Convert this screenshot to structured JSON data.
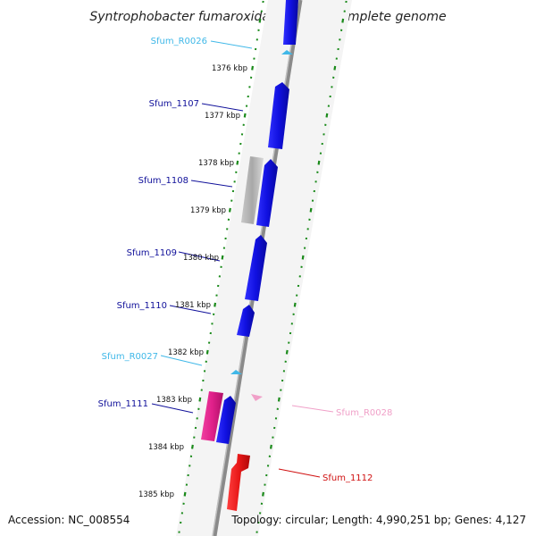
{
  "title": "Syntrophobacter fumaroxidans MPOB, complete genome",
  "accession": "Accession: NC_008554",
  "summary": "Topology: circular; Length: 4,990,251 bp; Genes: 4,127",
  "colors": {
    "cds": "#1010e0",
    "rna": "#40b8e8",
    "pseudo": "#b0b0b0",
    "magenta_gene": "#e0208a",
    "red_gene": "#e81818",
    "pink_rna": "#f0a0c8",
    "scale": "#1a8a1a",
    "backbone": "#888888"
  },
  "kbp_ticks": [
    {
      "label": "1376 kbp"
    },
    {
      "label": "1377 kbp"
    },
    {
      "label": "1378 kbp"
    },
    {
      "label": "1379 kbp"
    },
    {
      "label": "1380 kbp"
    },
    {
      "label": "1381 kbp"
    },
    {
      "label": "1382 kbp"
    },
    {
      "label": "1383 kbp"
    },
    {
      "label": "1384 kbp"
    },
    {
      "label": "1385 kbp"
    }
  ],
  "gene_labels": [
    {
      "name": "Sfum_R0026",
      "color": "#40b8e8"
    },
    {
      "name": "Sfum_1107",
      "color": "#10109a"
    },
    {
      "name": "Sfum_1108",
      "color": "#10109a"
    },
    {
      "name": "Sfum_1109",
      "color": "#10109a"
    },
    {
      "name": "Sfum_1110",
      "color": "#10109a"
    },
    {
      "name": "Sfum_R0027",
      "color": "#40b8e8"
    },
    {
      "name": "Sfum_1111",
      "color": "#10109a"
    },
    {
      "name": "Sfum_R0028",
      "color": "#f0a0c8"
    },
    {
      "name": "Sfum_1112",
      "color": "#d01010"
    }
  ]
}
